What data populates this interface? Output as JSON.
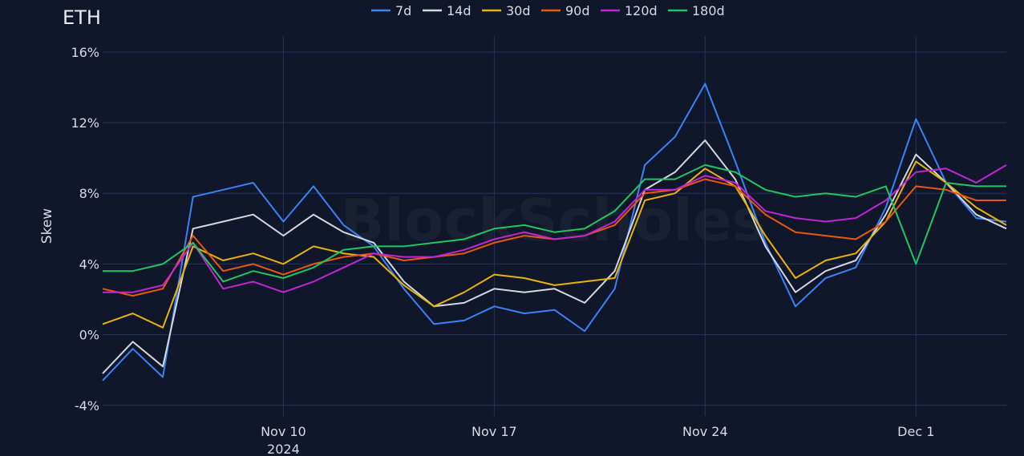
{
  "chart_data": {
    "type": "line",
    "title": "ETH",
    "ylabel": "Skew",
    "xlabel": "",
    "y_tick_labels": [
      "-4%",
      "0%",
      "4%",
      "8%",
      "12%",
      "16%"
    ],
    "y_ticks": [
      -4,
      0,
      4,
      8,
      12,
      16
    ],
    "ylim": [
      -4.6,
      16.9
    ],
    "x_ticks": [
      {
        "date": "2024-11-10",
        "label": "Nov 10",
        "sublabel": "2024"
      },
      {
        "date": "2024-11-17",
        "label": "Nov 17",
        "sublabel": ""
      },
      {
        "date": "2024-11-24",
        "label": "Nov 24",
        "sublabel": ""
      },
      {
        "date": "2024-12-01",
        "label": "Dec 1",
        "sublabel": ""
      }
    ],
    "xlim": [
      "2024-11-04",
      "2024-12-04"
    ],
    "grid": true,
    "legend_position": "top",
    "watermark": "BlockScholes",
    "series": [
      {
        "name": "7d",
        "color": "#3b82f6",
        "points": [
          [
            "2024-11-04",
            -2.6
          ],
          [
            "2024-11-05",
            -0.8
          ],
          [
            "2024-11-06",
            -2.4
          ],
          [
            "2024-11-07",
            7.8
          ],
          [
            "2024-11-08",
            8.2
          ],
          [
            "2024-11-09",
            8.6
          ],
          [
            "2024-11-10",
            6.4
          ],
          [
            "2024-11-11",
            8.4
          ],
          [
            "2024-11-12",
            6.2
          ],
          [
            "2024-11-13",
            5.0
          ],
          [
            "2024-11-14",
            2.6
          ],
          [
            "2024-11-15",
            0.6
          ],
          [
            "2024-11-16",
            0.8
          ],
          [
            "2024-11-17",
            1.6
          ],
          [
            "2024-11-18",
            1.2
          ],
          [
            "2024-11-19",
            1.4
          ],
          [
            "2024-11-20",
            0.2
          ],
          [
            "2024-11-21",
            2.6
          ],
          [
            "2024-11-22",
            9.6
          ],
          [
            "2024-11-23",
            11.2
          ],
          [
            "2024-11-24",
            14.2
          ],
          [
            "2024-11-25",
            9.8
          ],
          [
            "2024-11-26",
            5.2
          ],
          [
            "2024-11-27",
            1.6
          ],
          [
            "2024-11-28",
            3.2
          ],
          [
            "2024-11-29",
            3.8
          ],
          [
            "2024-11-30",
            7.2
          ],
          [
            "2024-12-01",
            12.2
          ],
          [
            "2024-12-02",
            8.6
          ],
          [
            "2024-12-03",
            6.6
          ],
          [
            "2024-12-04",
            6.4
          ]
        ]
      },
      {
        "name": "14d",
        "color": "#d3d7e0",
        "points": [
          [
            "2024-11-04",
            -2.2
          ],
          [
            "2024-11-05",
            -0.4
          ],
          [
            "2024-11-06",
            -1.8
          ],
          [
            "2024-11-07",
            6.0
          ],
          [
            "2024-11-08",
            6.4
          ],
          [
            "2024-11-09",
            6.8
          ],
          [
            "2024-11-10",
            5.6
          ],
          [
            "2024-11-11",
            6.8
          ],
          [
            "2024-11-12",
            5.8
          ],
          [
            "2024-11-13",
            5.2
          ],
          [
            "2024-11-14",
            3.0
          ],
          [
            "2024-11-15",
            1.6
          ],
          [
            "2024-11-16",
            1.8
          ],
          [
            "2024-11-17",
            2.6
          ],
          [
            "2024-11-18",
            2.4
          ],
          [
            "2024-11-19",
            2.6
          ],
          [
            "2024-11-20",
            1.8
          ],
          [
            "2024-11-21",
            3.6
          ],
          [
            "2024-11-22",
            8.2
          ],
          [
            "2024-11-23",
            9.2
          ],
          [
            "2024-11-24",
            11.0
          ],
          [
            "2024-11-25",
            8.8
          ],
          [
            "2024-11-26",
            5.0
          ],
          [
            "2024-11-27",
            2.4
          ],
          [
            "2024-11-28",
            3.6
          ],
          [
            "2024-11-29",
            4.2
          ],
          [
            "2024-11-30",
            6.8
          ],
          [
            "2024-12-01",
            10.2
          ],
          [
            "2024-12-02",
            8.6
          ],
          [
            "2024-12-03",
            6.8
          ],
          [
            "2024-12-04",
            6.0
          ]
        ]
      },
      {
        "name": "30d",
        "color": "#eab308",
        "points": [
          [
            "2024-11-04",
            0.6
          ],
          [
            "2024-11-05",
            1.2
          ],
          [
            "2024-11-06",
            0.4
          ],
          [
            "2024-11-07",
            5.0
          ],
          [
            "2024-11-08",
            4.2
          ],
          [
            "2024-11-09",
            4.6
          ],
          [
            "2024-11-10",
            4.0
          ],
          [
            "2024-11-11",
            5.0
          ],
          [
            "2024-11-12",
            4.6
          ],
          [
            "2024-11-13",
            4.4
          ],
          [
            "2024-11-14",
            2.8
          ],
          [
            "2024-11-15",
            1.6
          ],
          [
            "2024-11-16",
            2.4
          ],
          [
            "2024-11-17",
            3.4
          ],
          [
            "2024-11-18",
            3.2
          ],
          [
            "2024-11-19",
            2.8
          ],
          [
            "2024-11-20",
            3.0
          ],
          [
            "2024-11-21",
            3.2
          ],
          [
            "2024-11-22",
            7.6
          ],
          [
            "2024-11-23",
            8.0
          ],
          [
            "2024-11-24",
            9.4
          ],
          [
            "2024-11-25",
            8.4
          ],
          [
            "2024-11-26",
            5.6
          ],
          [
            "2024-11-27",
            3.2
          ],
          [
            "2024-11-28",
            4.2
          ],
          [
            "2024-11-29",
            4.6
          ],
          [
            "2024-11-30",
            6.4
          ],
          [
            "2024-12-01",
            9.8
          ],
          [
            "2024-12-02",
            8.6
          ],
          [
            "2024-12-03",
            7.2
          ],
          [
            "2024-12-04",
            6.2
          ]
        ]
      },
      {
        "name": "90d",
        "color": "#ea580c",
        "points": [
          [
            "2024-11-04",
            2.6
          ],
          [
            "2024-11-05",
            2.2
          ],
          [
            "2024-11-06",
            2.6
          ],
          [
            "2024-11-07",
            5.6
          ],
          [
            "2024-11-08",
            3.6
          ],
          [
            "2024-11-09",
            4.0
          ],
          [
            "2024-11-10",
            3.4
          ],
          [
            "2024-11-11",
            4.0
          ],
          [
            "2024-11-12",
            4.4
          ],
          [
            "2024-11-13",
            4.6
          ],
          [
            "2024-11-14",
            4.2
          ],
          [
            "2024-11-15",
            4.4
          ],
          [
            "2024-11-16",
            4.6
          ],
          [
            "2024-11-17",
            5.2
          ],
          [
            "2024-11-18",
            5.6
          ],
          [
            "2024-11-19",
            5.4
          ],
          [
            "2024-11-20",
            5.6
          ],
          [
            "2024-11-21",
            6.2
          ],
          [
            "2024-11-22",
            8.0
          ],
          [
            "2024-11-23",
            8.2
          ],
          [
            "2024-11-24",
            8.8
          ],
          [
            "2024-11-25",
            8.4
          ],
          [
            "2024-11-26",
            6.8
          ],
          [
            "2024-11-27",
            5.8
          ],
          [
            "2024-11-28",
            5.6
          ],
          [
            "2024-11-29",
            5.4
          ],
          [
            "2024-11-30",
            6.4
          ],
          [
            "2024-12-01",
            8.4
          ],
          [
            "2024-12-02",
            8.2
          ],
          [
            "2024-12-03",
            7.6
          ],
          [
            "2024-12-04",
            7.6
          ]
        ]
      },
      {
        "name": "120d",
        "color": "#c026d3",
        "points": [
          [
            "2024-11-04",
            2.4
          ],
          [
            "2024-11-05",
            2.4
          ],
          [
            "2024-11-06",
            2.8
          ],
          [
            "2024-11-07",
            5.2
          ],
          [
            "2024-11-08",
            2.6
          ],
          [
            "2024-11-09",
            3.0
          ],
          [
            "2024-11-10",
            2.4
          ],
          [
            "2024-11-11",
            3.0
          ],
          [
            "2024-11-12",
            3.8
          ],
          [
            "2024-11-13",
            4.6
          ],
          [
            "2024-11-14",
            4.4
          ],
          [
            "2024-11-15",
            4.4
          ],
          [
            "2024-11-16",
            4.8
          ],
          [
            "2024-11-17",
            5.4
          ],
          [
            "2024-11-18",
            5.8
          ],
          [
            "2024-11-19",
            5.4
          ],
          [
            "2024-11-20",
            5.6
          ],
          [
            "2024-11-21",
            6.4
          ],
          [
            "2024-11-22",
            8.2
          ],
          [
            "2024-11-23",
            8.2
          ],
          [
            "2024-11-24",
            9.0
          ],
          [
            "2024-11-25",
            8.6
          ],
          [
            "2024-11-26",
            7.0
          ],
          [
            "2024-11-27",
            6.6
          ],
          [
            "2024-11-28",
            6.4
          ],
          [
            "2024-11-29",
            6.6
          ],
          [
            "2024-11-30",
            7.6
          ],
          [
            "2024-12-01",
            9.2
          ],
          [
            "2024-12-02",
            9.4
          ],
          [
            "2024-12-03",
            8.6
          ],
          [
            "2024-12-04",
            9.6
          ]
        ]
      },
      {
        "name": "180d",
        "color": "#22c55e",
        "points": [
          [
            "2024-11-04",
            3.6
          ],
          [
            "2024-11-05",
            3.6
          ],
          [
            "2024-11-06",
            4.0
          ],
          [
            "2024-11-07",
            5.2
          ],
          [
            "2024-11-08",
            3.0
          ],
          [
            "2024-11-09",
            3.6
          ],
          [
            "2024-11-10",
            3.2
          ],
          [
            "2024-11-11",
            3.8
          ],
          [
            "2024-11-12",
            4.8
          ],
          [
            "2024-11-13",
            5.0
          ],
          [
            "2024-11-14",
            5.0
          ],
          [
            "2024-11-15",
            5.2
          ],
          [
            "2024-11-16",
            5.4
          ],
          [
            "2024-11-17",
            6.0
          ],
          [
            "2024-11-18",
            6.2
          ],
          [
            "2024-11-19",
            5.8
          ],
          [
            "2024-11-20",
            6.0
          ],
          [
            "2024-11-21",
            7.0
          ],
          [
            "2024-11-22",
            8.8
          ],
          [
            "2024-11-23",
            8.8
          ],
          [
            "2024-11-24",
            9.6
          ],
          [
            "2024-11-25",
            9.2
          ],
          [
            "2024-11-26",
            8.2
          ],
          [
            "2024-11-27",
            7.8
          ],
          [
            "2024-11-28",
            8.0
          ],
          [
            "2024-11-29",
            7.8
          ],
          [
            "2024-11-30",
            8.4
          ],
          [
            "2024-12-01",
            4.0
          ],
          [
            "2024-12-02",
            8.6
          ],
          [
            "2024-12-03",
            8.4
          ],
          [
            "2024-12-04",
            8.4
          ]
        ]
      }
    ]
  }
}
